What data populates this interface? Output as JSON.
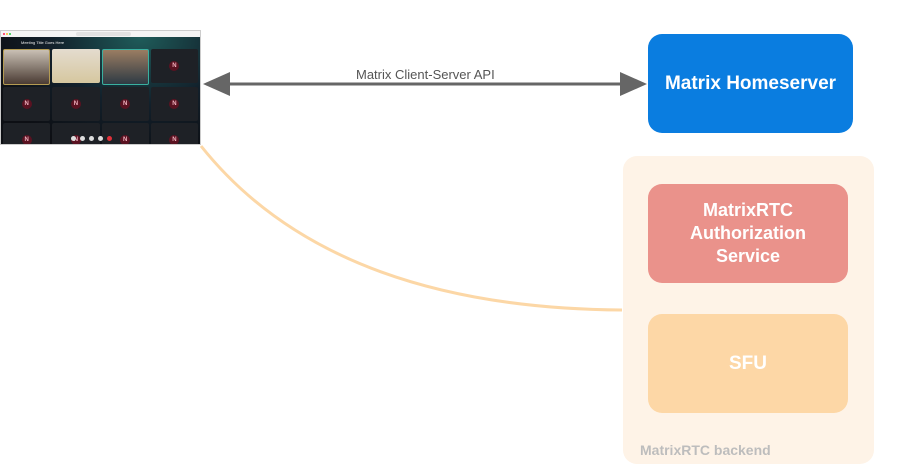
{
  "diagram": {
    "client_screenshot": {
      "meeting_title": "Meeting Title Goes Here",
      "tile_initial": "N"
    },
    "edges": [
      {
        "from": "client",
        "to": "homeserver",
        "label": "Matrix Client-Server API",
        "style": "bidirectional-arrow",
        "color": "#666666"
      },
      {
        "from": "client",
        "to": "backend",
        "label": "",
        "style": "curve",
        "color": "#fcd7a6"
      }
    ],
    "nodes": {
      "homeserver": {
        "label": "Matrix Homeserver",
        "color": "#0a7de0"
      },
      "auth_service": {
        "label": "MatrixRTC Authorization Service",
        "color": "#ea928b"
      },
      "sfu": {
        "label": "SFU",
        "color": "#fdd7a6"
      }
    },
    "group": {
      "label": "MatrixRTC backend",
      "color": "#fef3e7"
    }
  }
}
